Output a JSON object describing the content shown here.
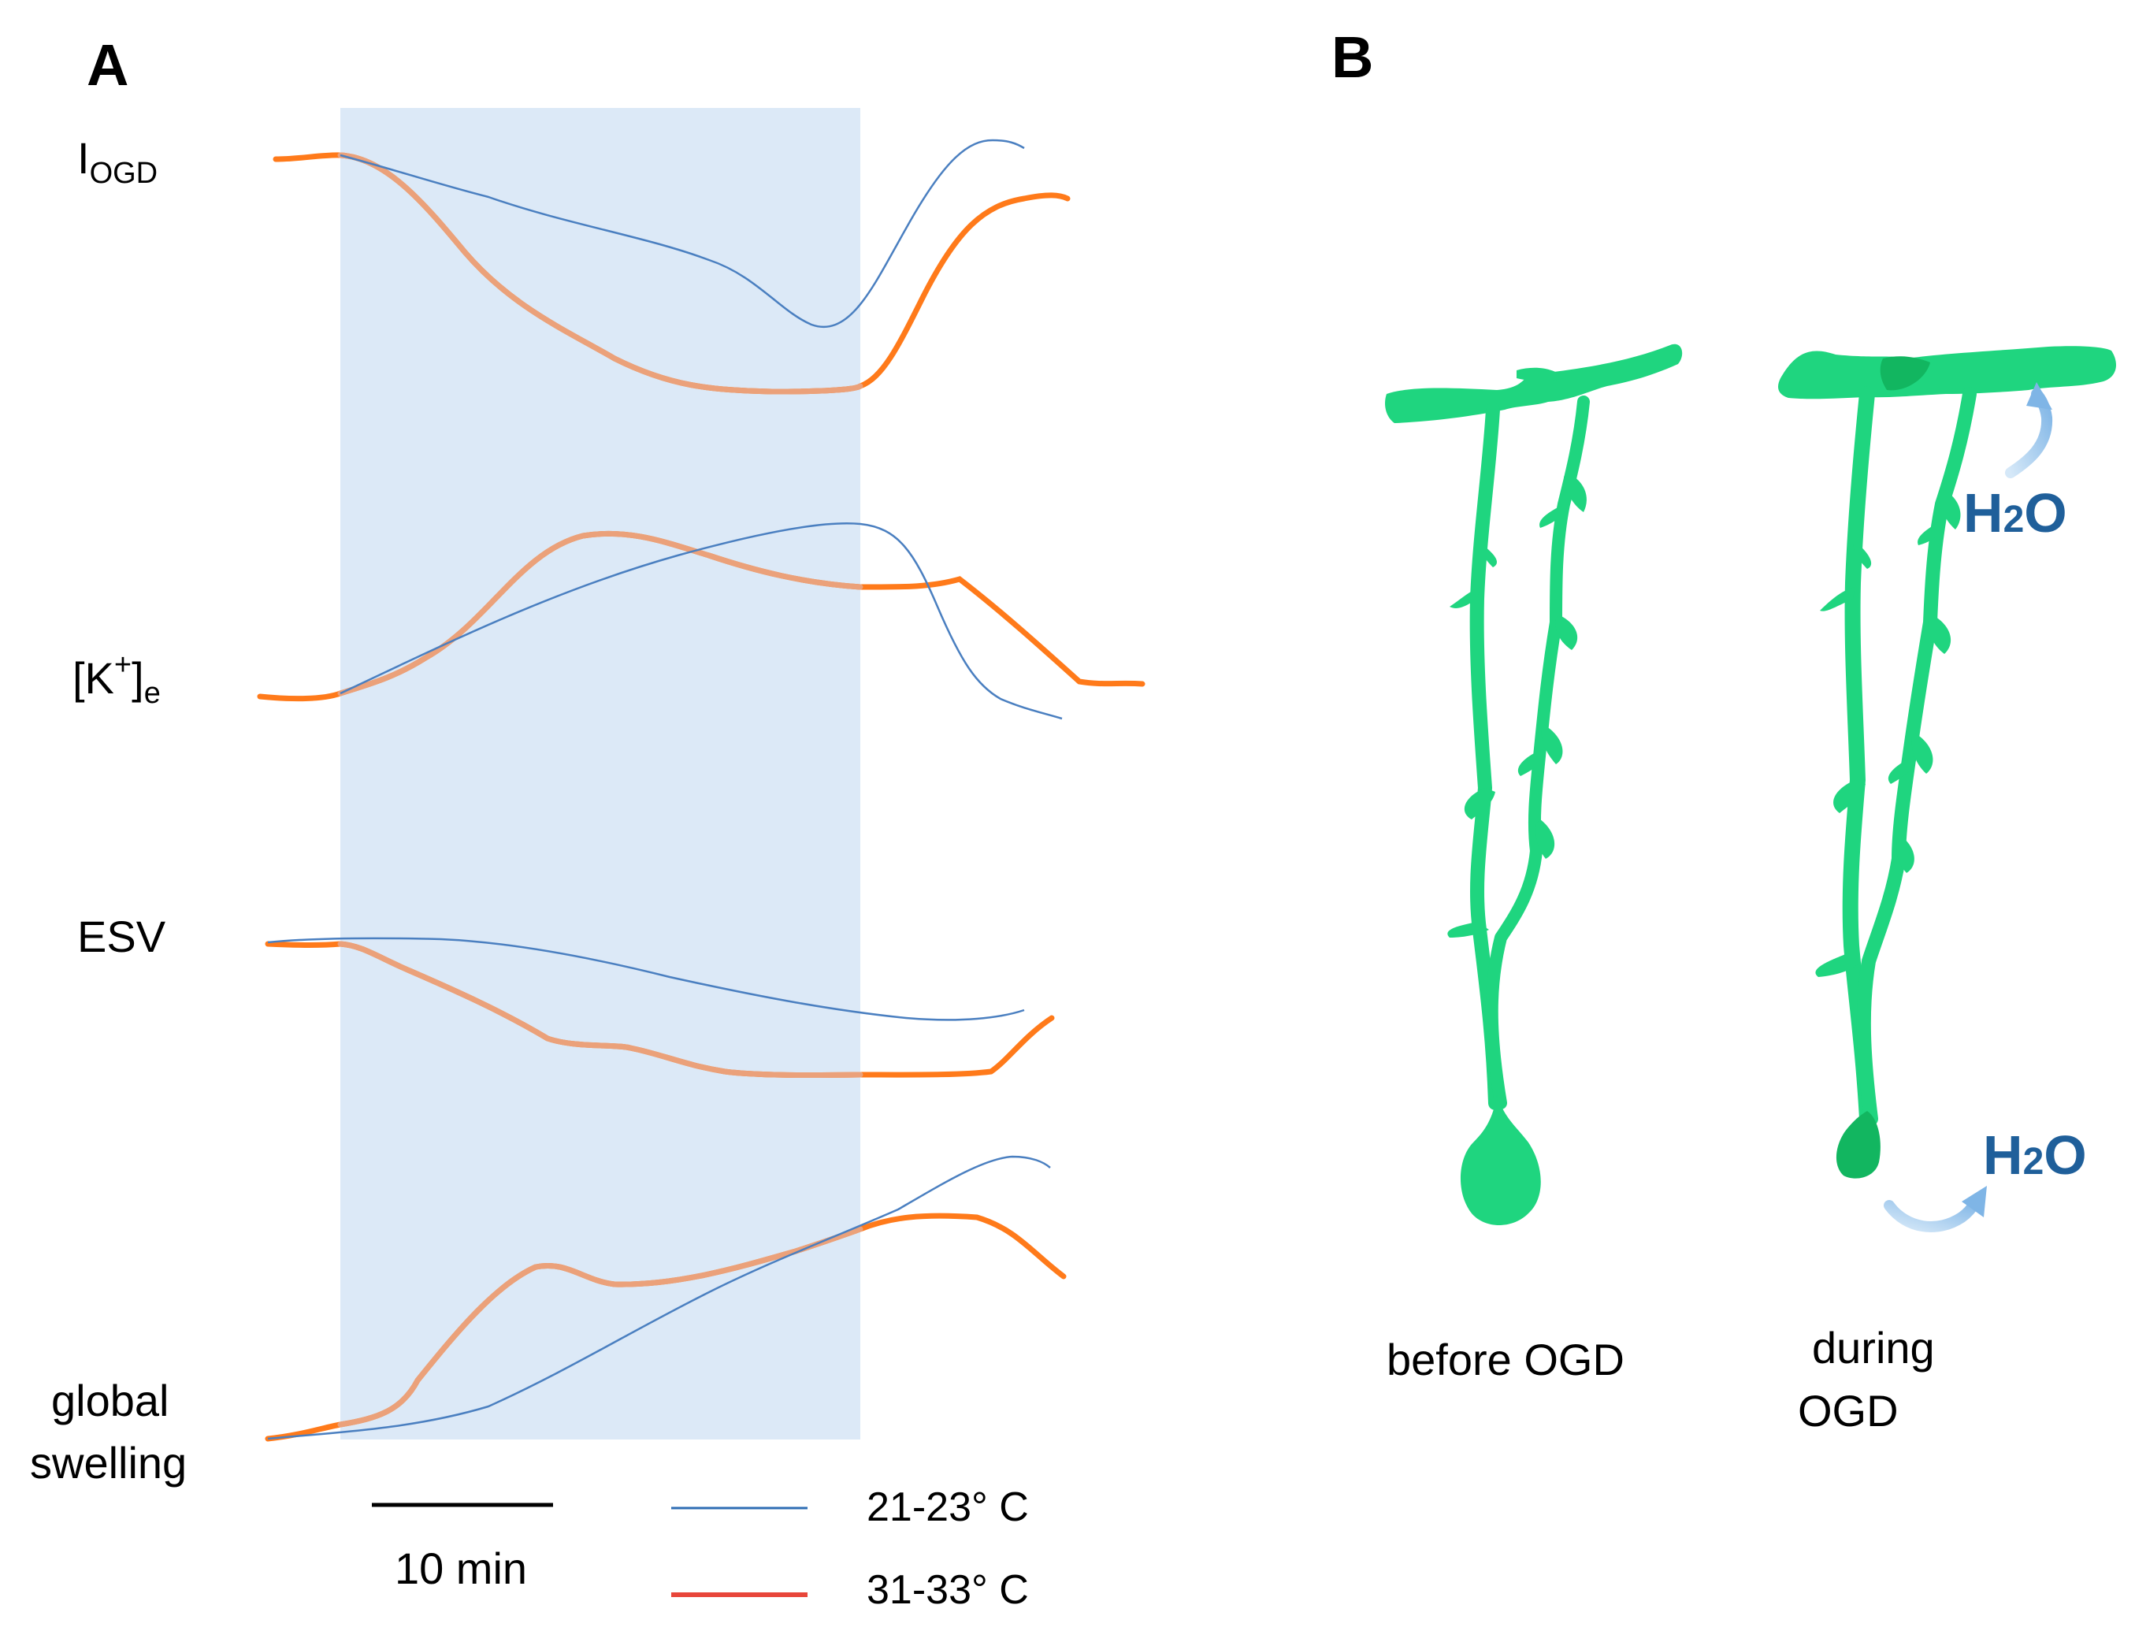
{
  "panels": {
    "a": {
      "label": "A",
      "traces": [
        {
          "id": "iogd",
          "main": "I",
          "sub": "OGD"
        },
        {
          "id": "k",
          "main": "[K",
          "sup": "+",
          "close": "]",
          "sub": "e"
        },
        {
          "id": "esv",
          "main": "ESV"
        },
        {
          "id": "swelling",
          "line1": "global",
          "line2": "swelling"
        }
      ],
      "scale_bar": {
        "label": "10 min",
        "minutes": 10
      },
      "legend": [
        {
          "label": "21-23° C",
          "color": "#2e6db4"
        },
        {
          "label": "31-33° C",
          "color": "#e8463a"
        }
      ],
      "colors": {
        "ogd_band": "#dce9f7",
        "warm_trace": "#ff7a1a",
        "warm_trace_in_band": "#eba17a",
        "cool_trace": "#4a7fc0"
      }
    },
    "b": {
      "label": "B",
      "cells": [
        {
          "caption": "before OGD"
        },
        {
          "caption_line1": "during",
          "caption_line2": "OGD"
        }
      ],
      "water": {
        "text": "H",
        "sub": "2",
        "tail": "O"
      },
      "colors": {
        "cell": "#1fd57f",
        "cell_dark": "#12b660",
        "arrow": "#8ec0ea",
        "water_text": "#1f5f9a"
      }
    }
  }
}
